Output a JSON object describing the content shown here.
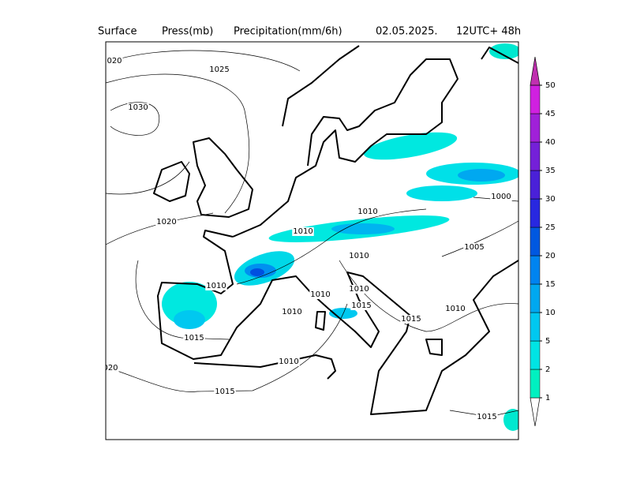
{
  "header": {
    "field1": "Surface",
    "field2": "Press(mb)",
    "field3": "Precipitation(mm/6h)",
    "date": "02.05.2025.",
    "run": "12UTC+ 48h"
  },
  "colorbar": {
    "levels": [
      1,
      2,
      5,
      10,
      15,
      20,
      25,
      30,
      35,
      40,
      45,
      50
    ],
    "colors": [
      "#00f0c0",
      "#00e4e4",
      "#00c8f0",
      "#00a8f0",
      "#0084f0",
      "#0058e0",
      "#2828e0",
      "#4a20d8",
      "#7420d8",
      "#a020d8",
      "#d020e0",
      "#c030b0"
    ]
  },
  "isobar_labels": [
    "020",
    "1025",
    "1030",
    "1020",
    "1010",
    "1015",
    "020",
    "1015",
    "1010",
    "1010",
    "1010",
    "1010",
    "1010",
    "1010",
    "1010",
    "1015",
    "1015",
    "1010",
    "1005",
    "1000",
    "1015"
  ]
}
